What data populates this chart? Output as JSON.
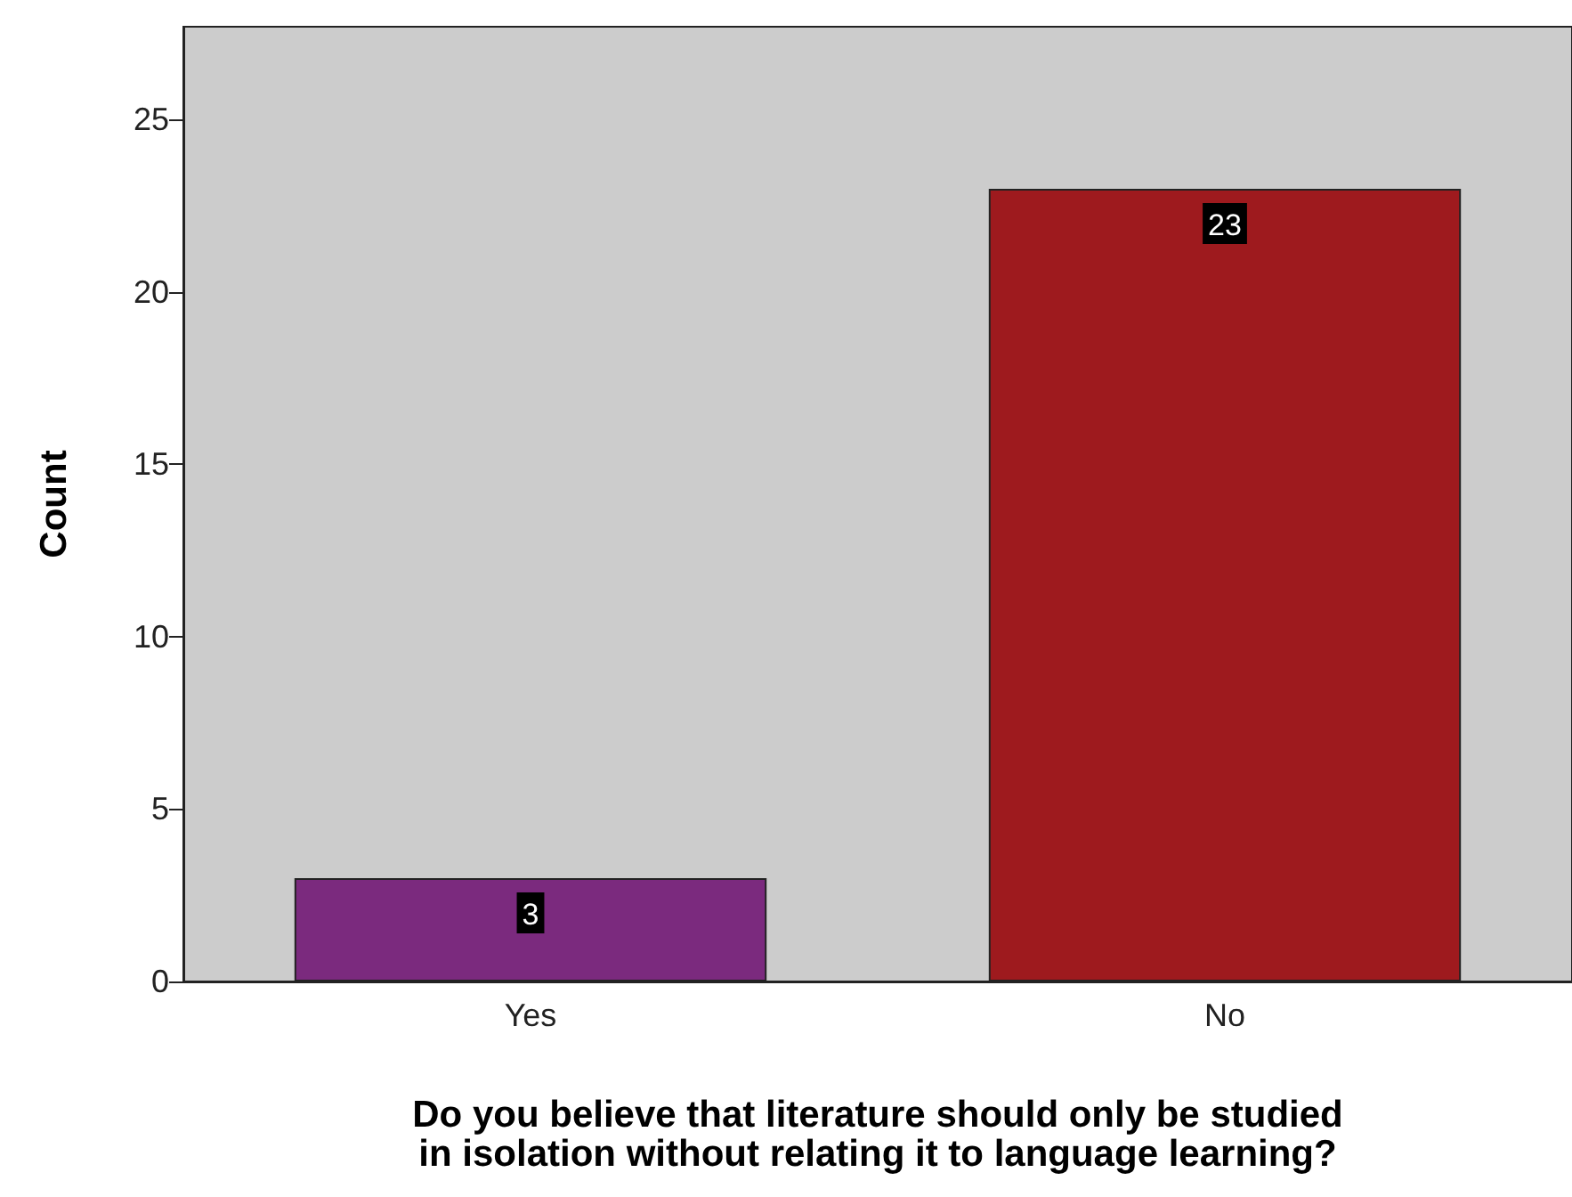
{
  "chart_data": {
    "type": "bar",
    "xlabel": "Do you believe that literature should only be studied in isolation without relating it to language learning?",
    "ylabel": "Count",
    "categories": [
      "Yes",
      "No"
    ],
    "values": [
      3,
      23
    ],
    "colors": [
      "#7b2a7e",
      "#9e1a1e"
    ],
    "ylim": [
      0,
      27.7
    ],
    "yticks": [
      0,
      5,
      10,
      15,
      20,
      25
    ],
    "grid": false,
    "data_labels": true
  }
}
